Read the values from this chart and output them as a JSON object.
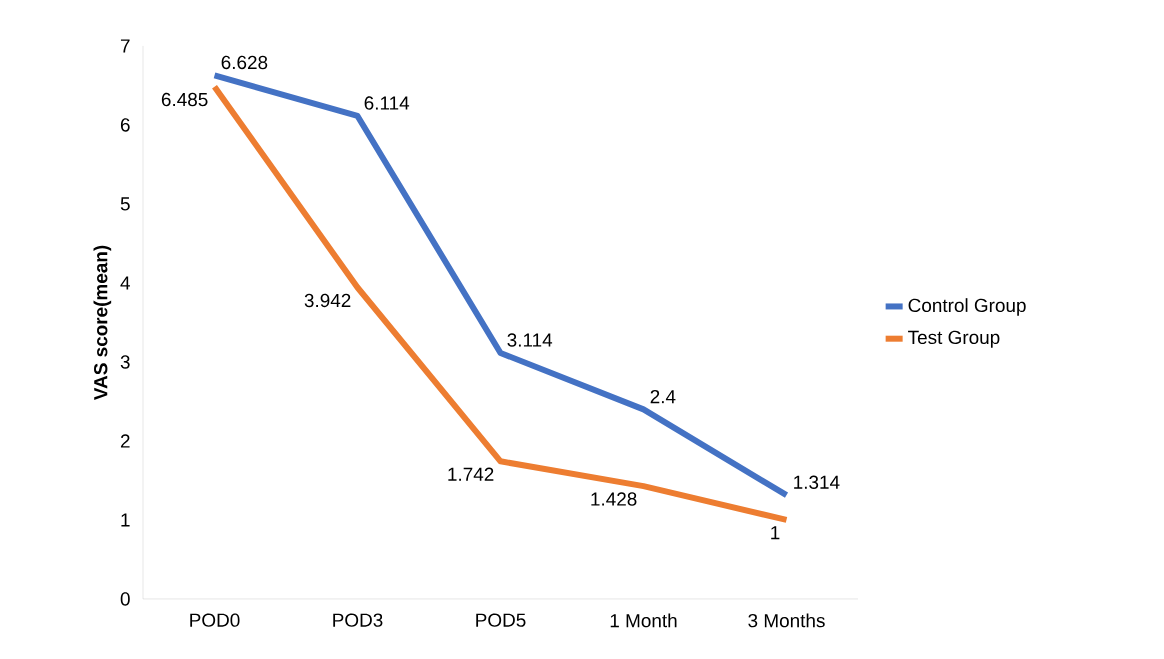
{
  "chart_data": {
    "type": "line",
    "ylabel": "VAS score(mean)",
    "categories": [
      "POD0",
      "POD3",
      "POD5",
      "1 Month",
      "3 Months"
    ],
    "series": [
      {
        "name": "Control Group",
        "color": "#4472c4",
        "values": [
          6.628,
          6.114,
          3.114,
          2.4,
          1.314
        ]
      },
      {
        "name": "Test Group",
        "color": "#ed7d31",
        "values": [
          6.485,
          3.942,
          1.742,
          1.428,
          1
        ]
      }
    ],
    "ylim": [
      0,
      7
    ],
    "yticks": [
      0,
      1,
      2,
      3,
      4,
      5,
      6,
      7
    ],
    "data_labels": true,
    "legend": "right",
    "grid": false,
    "marker": "none",
    "line_style": "solid"
  }
}
